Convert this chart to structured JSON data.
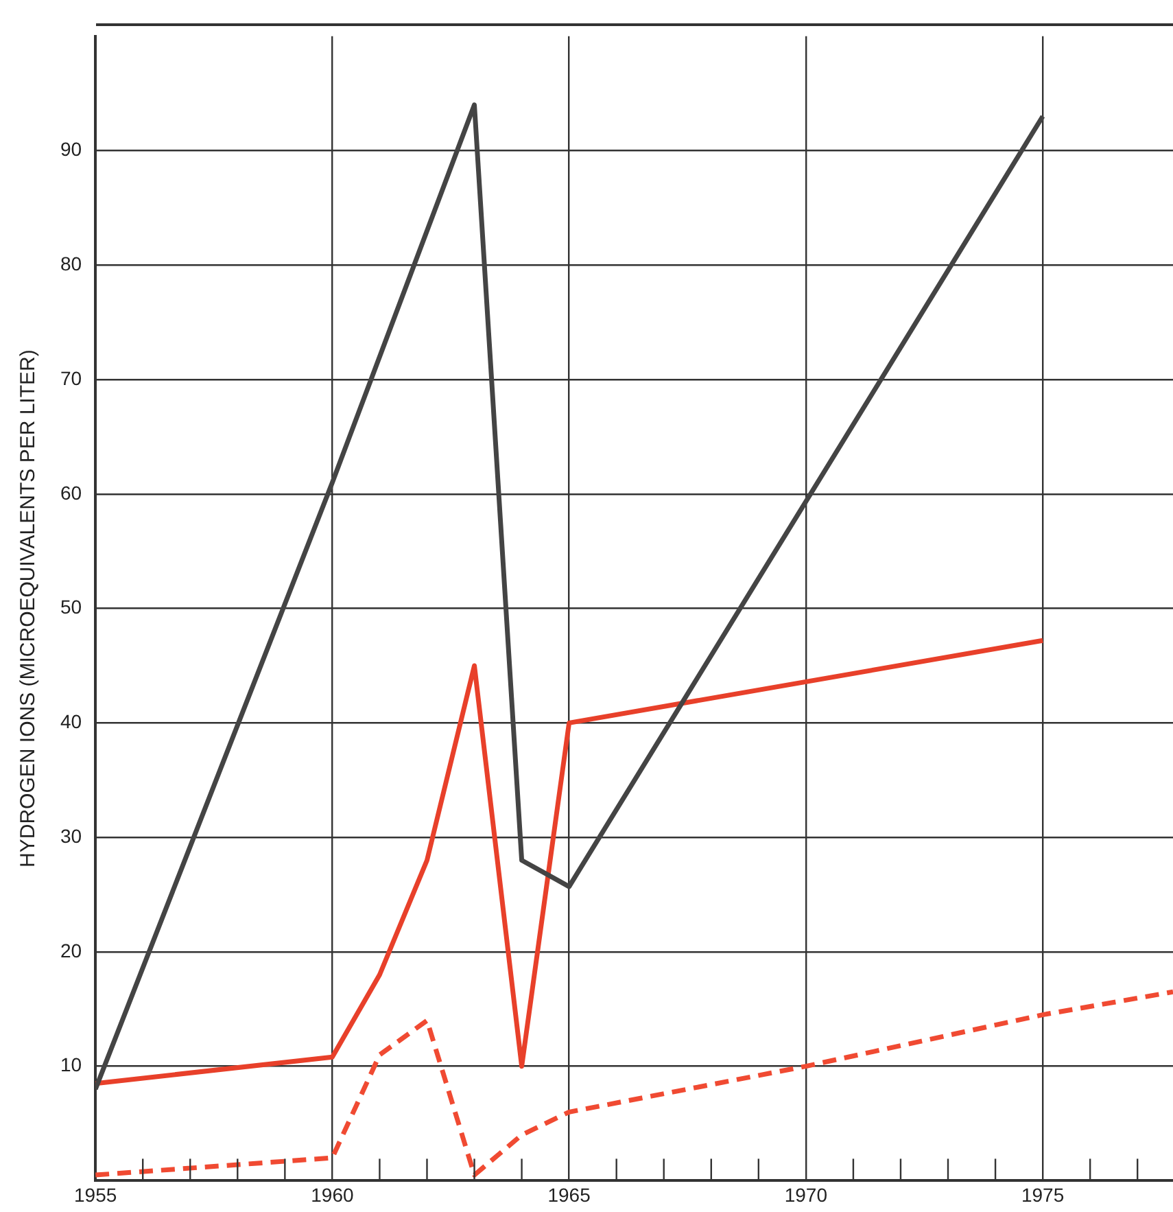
{
  "chart_data": {
    "type": "line",
    "ylabel": "HYDROGEN IONS (MICROEQUIVALENTS PER LITER)",
    "xlim": [
      1955,
      1977.75
    ],
    "ylim": [
      0,
      100
    ],
    "xticks": [
      1955,
      {
        "value": 1956,
        "label": null
      },
      {
        "value": 1957,
        "label": null
      },
      {
        "value": 1958,
        "label": null
      },
      {
        "value": 1959,
        "label": null
      },
      1960,
      {
        "value": 1961,
        "label": null
      },
      {
        "value": 1962,
        "label": null
      },
      {
        "value": 1963,
        "label": null
      },
      {
        "value": 1964,
        "label": null
      },
      1965,
      {
        "value": 1966,
        "label": null
      },
      {
        "value": 1967,
        "label": null
      },
      {
        "value": 1968,
        "label": null
      },
      {
        "value": 1969,
        "label": null
      },
      1970,
      {
        "value": 1971,
        "label": null
      },
      {
        "value": 1972,
        "label": null
      },
      {
        "value": 1973,
        "label": null
      },
      {
        "value": 1974,
        "label": null
      },
      1975,
      {
        "value": 1976,
        "label": null
      },
      {
        "value": 1977,
        "label": null
      }
    ],
    "yticks": [
      10,
      20,
      30,
      40,
      50,
      60,
      70,
      80,
      90
    ],
    "grid": true,
    "legend": false,
    "marker": "none",
    "series": [
      {
        "color": "#444444",
        "line_style": "solid",
        "x": [
          1955,
          1960,
          1963,
          1964,
          1965,
          1975
        ],
        "values": [
          8,
          61,
          94,
          28,
          25.7,
          93
        ]
      },
      {
        "color": "#e8402a",
        "line_style": "solid",
        "x": [
          1955,
          1960,
          1961,
          1962,
          1963,
          1964,
          1965,
          1975
        ],
        "values": [
          8.5,
          10.8,
          18,
          28,
          45,
          10,
          40,
          47.2
        ]
      },
      {
        "color": "#f04a32",
        "line_style": "dashed",
        "x": [
          1955,
          1960,
          1961,
          1962,
          1963,
          1964,
          1965,
          1970,
          1975,
          1977.75
        ],
        "values": [
          0.5,
          2,
          11,
          14,
          0.5,
          4,
          6,
          10,
          14.5,
          16.5
        ]
      }
    ]
  }
}
